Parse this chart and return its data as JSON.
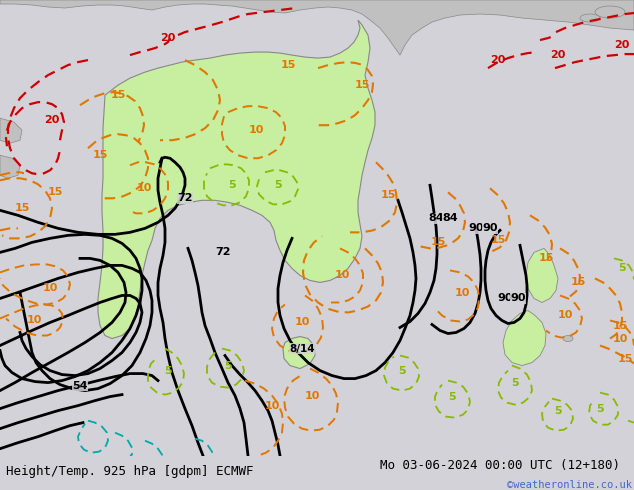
{
  "title_left": "Height/Temp. 925 hPa [gdpm] ECMWF",
  "title_right": "Mo 03-06-2024 00:00 UTC (12+180)",
  "copyright": "©weatheronline.co.uk",
  "bg_color": "#d2d2d8",
  "australia_color": "#c8eea0",
  "nz_color": "#c8eea0",
  "land_color": "#c0c0c0",
  "bottom_bar_color": "#c8c8d8",
  "title_fontsize": 9,
  "copyright_color": "#4466cc"
}
